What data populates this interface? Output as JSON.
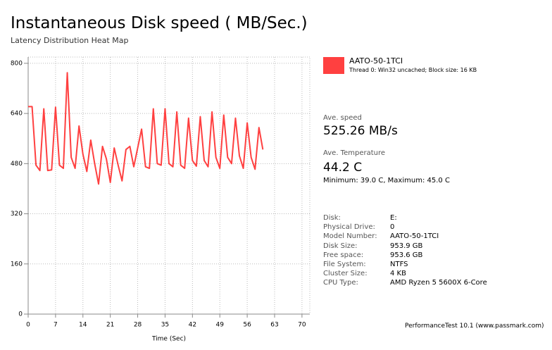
{
  "chart_data": {
    "type": "line",
    "title": "Instantaneous Disk speed ( MB/Sec.)",
    "subtitle": "Latency Distribution Heat Map",
    "xlabel": "Time (Sec)",
    "x": [
      0,
      1,
      2,
      3,
      4,
      5,
      6,
      7,
      8,
      9,
      10,
      11,
      12,
      13,
      14,
      15,
      16,
      17,
      18,
      19,
      20,
      21,
      22,
      23,
      24,
      25,
      26,
      27,
      28,
      29,
      30,
      31,
      32,
      33,
      34,
      35,
      36,
      37,
      38,
      39,
      40,
      41,
      42,
      43,
      44,
      45,
      46,
      47,
      48,
      49,
      50,
      51,
      52,
      53,
      54,
      55,
      56,
      57,
      58,
      59,
      60
    ],
    "series": [
      {
        "name": "AATO-50-1TCI",
        "color": "#ff4040",
        "values": [
          662,
          662,
          475,
          458,
          655,
          458,
          460,
          660,
          475,
          465,
          770,
          500,
          465,
          600,
          510,
          455,
          555,
          480,
          415,
          535,
          495,
          420,
          530,
          475,
          425,
          525,
          535,
          470,
          530,
          590,
          470,
          465,
          655,
          480,
          475,
          655,
          480,
          470,
          645,
          475,
          465,
          625,
          490,
          472,
          630,
          490,
          470,
          645,
          500,
          465,
          635,
          500,
          480,
          625,
          505,
          465,
          610,
          500,
          462,
          595,
          525
        ]
      }
    ],
    "xlim": [
      0,
      72
    ],
    "xticks": [
      0,
      7,
      14,
      21,
      28,
      35,
      42,
      49,
      56,
      63,
      70
    ],
    "ylim": [
      0,
      820
    ],
    "yticks": [
      0,
      160,
      320,
      480,
      640,
      800
    ],
    "grid": true
  },
  "panel": {
    "legend_detail": "Thread 0: Win32 uncached; Block size: 16 KB",
    "stats": [
      {
        "label": "Ave. speed",
        "value": "525.26 MB/s"
      },
      {
        "label": "Ave. Temperature",
        "value": "44.2 C"
      }
    ],
    "min_max": "Minimum: 39.0 C, Maximum: 45.0 C",
    "info": [
      [
        "Disk:",
        "E:"
      ],
      [
        "Physical Drive:",
        "0"
      ],
      [
        "Model Number:",
        "AATO-50-1TCI"
      ],
      [
        "Disk Size:",
        "953.9 GB"
      ],
      [
        "Free space:",
        "953.6 GB"
      ],
      [
        "File System:",
        "NTFS"
      ],
      [
        "Cluster Size:",
        "4 KB"
      ],
      [
        "CPU Type:",
        "AMD Ryzen 5 5600X 6-Core"
      ]
    ]
  },
  "footer": "PerformanceTest 10.1 (www.passmark.com)"
}
